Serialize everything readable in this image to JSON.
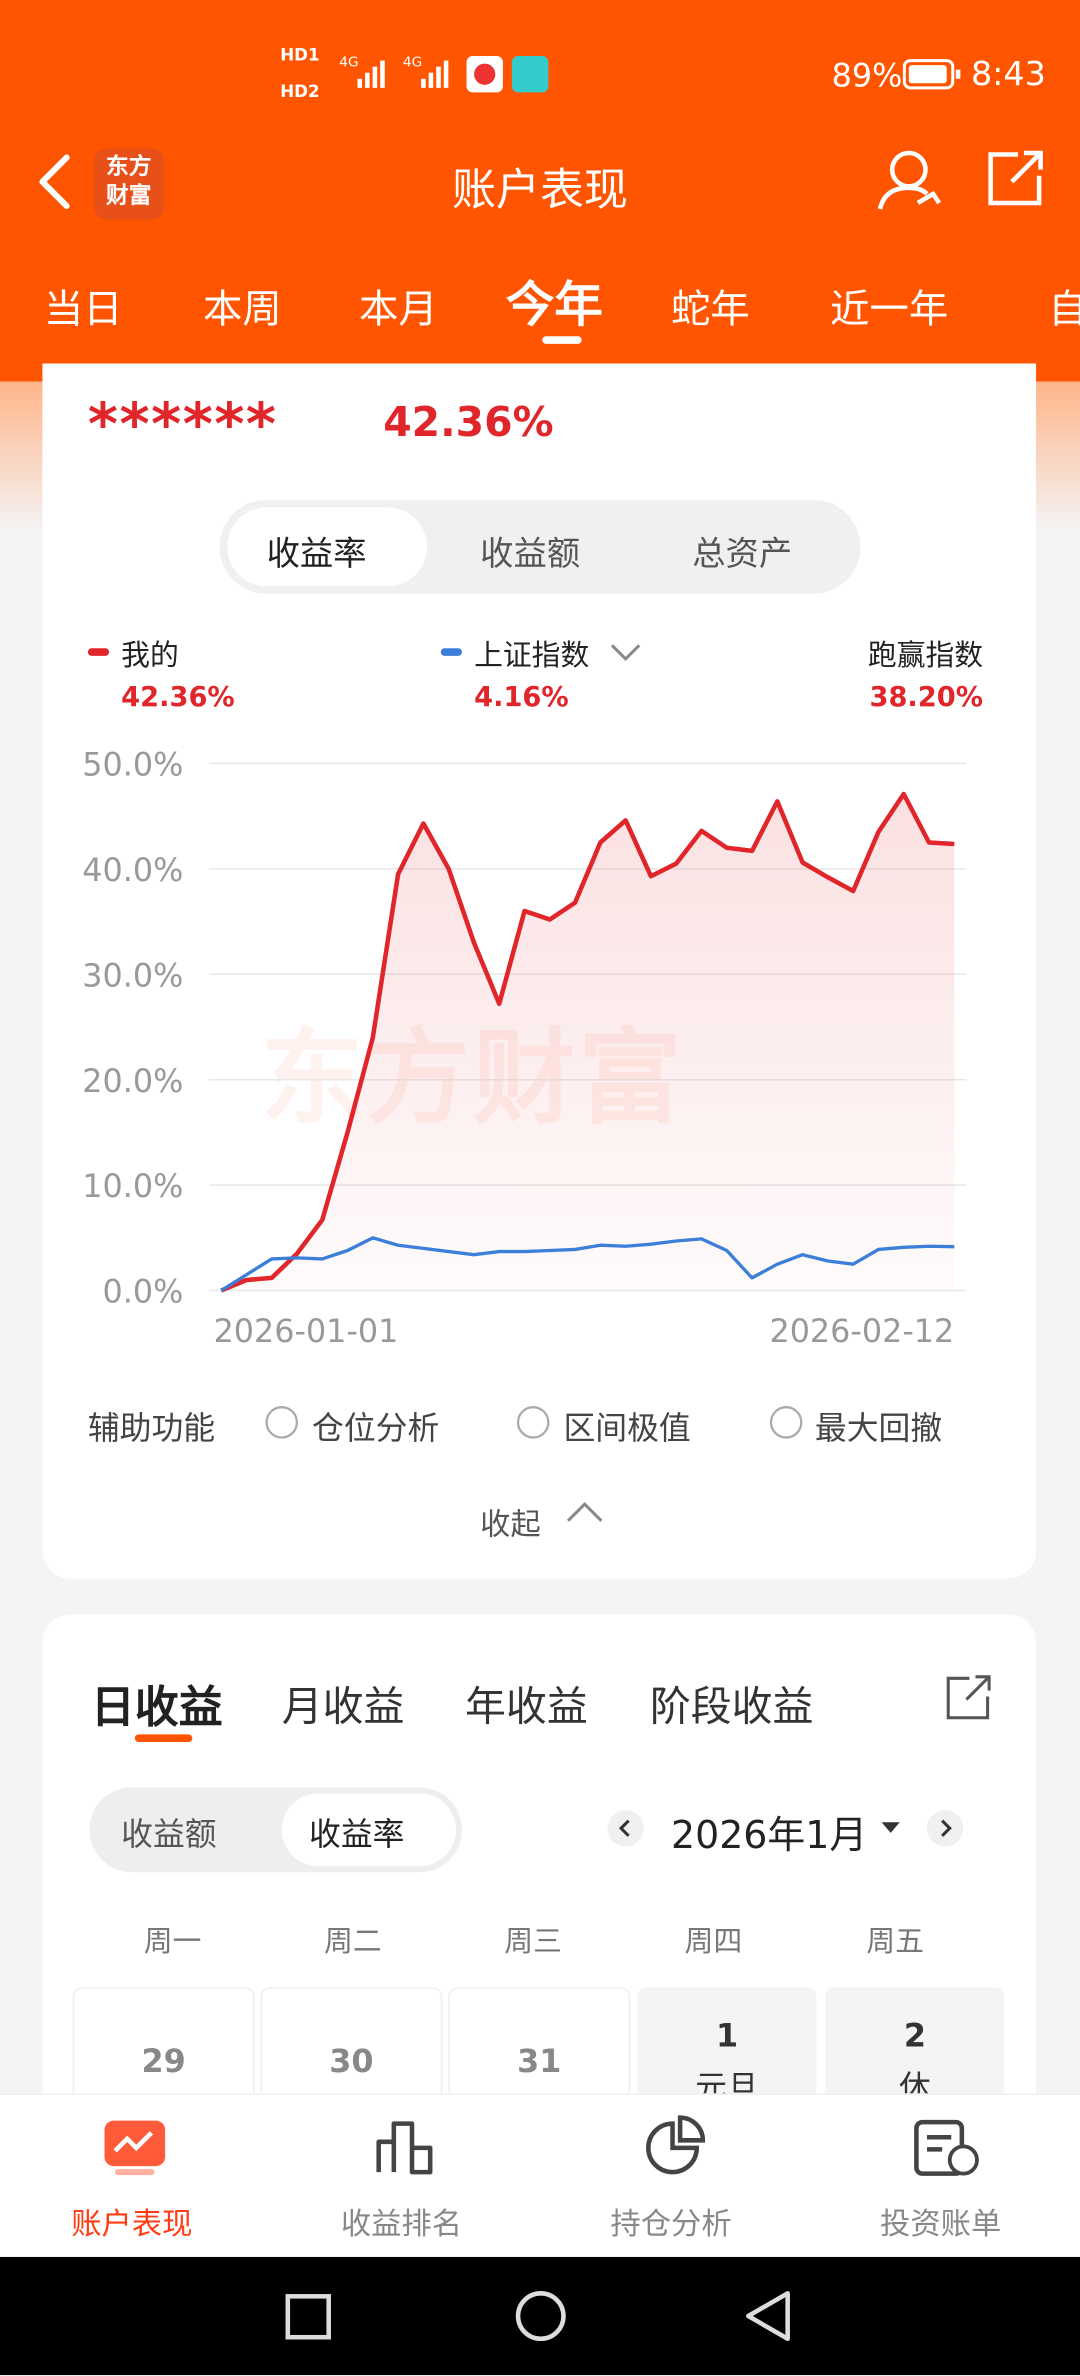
{
  "status_bar": {
    "sim1": "HD1",
    "sim2": "HD2",
    "net1": "4G",
    "net2": "4G",
    "battery": "89%",
    "time": "8:43"
  },
  "header": {
    "logo_top": "东方",
    "logo_bottom": "财富",
    "title": "账户表现"
  },
  "period_tabs": [
    "当日",
    "本周",
    "本月",
    "今年",
    "蛇年",
    "近一年",
    "自"
  ],
  "summary": {
    "masked": "******",
    "return": "42.36%"
  },
  "metric_tabs": [
    "收益率",
    "收益额",
    "总资产"
  ],
  "comparison": {
    "mine_value": "42.36%",
    "index_value": "4.16%",
    "outperform_label": "跑赢指数",
    "outperform_value": "38.20%"
  },
  "watermark": "东方财富",
  "chart_data": {
    "type": "line",
    "categories": [
      "2026-01-01",
      null,
      null,
      null,
      null,
      null,
      null,
      null,
      null,
      null,
      null,
      null,
      null,
      null,
      null,
      null,
      null,
      null,
      null,
      null,
      null,
      null,
      null,
      null,
      null,
      null,
      null,
      null,
      null,
      "2026-02-12"
    ],
    "series": [
      {
        "name": "我的",
        "color": "#e0262b",
        "values": [
          0,
          1.0,
          1.2,
          3.5,
          6.7,
          15,
          24,
          39.5,
          44.3,
          40,
          33,
          27.2,
          36,
          35.2,
          36.8,
          42.5,
          44.6,
          39.3,
          40.5,
          43.6,
          42,
          41.7,
          46.4,
          40.6,
          39.2,
          37.9,
          43.5,
          47.1,
          42.5,
          42.36
        ]
      },
      {
        "name": "上证指数",
        "color": "#3b7fd8",
        "values": [
          0,
          1.5,
          3.0,
          3.1,
          3.0,
          3.8,
          5.0,
          4.3,
          4.0,
          3.7,
          3.4,
          3.7,
          3.7,
          3.8,
          3.9,
          4.3,
          4.2,
          4.4,
          4.7,
          4.9,
          3.8,
          1.2,
          2.5,
          3.4,
          2.8,
          2.5,
          3.9,
          4.1,
          4.2,
          4.16
        ]
      }
    ],
    "ylim": [
      0,
      50
    ],
    "yticks": [
      {
        "value": 0,
        "label": "0.0%"
      },
      {
        "value": 10,
        "label": "10.0%"
      },
      {
        "value": 20,
        "label": "20.0%"
      },
      {
        "value": 30,
        "label": "30.0%"
      },
      {
        "value": 40,
        "label": "40.0%"
      },
      {
        "value": 50,
        "label": "50.0%"
      }
    ],
    "grid": true
  },
  "aux": {
    "label": "辅助功能",
    "options": [
      "仓位分析",
      "区间极值",
      "最大回撤"
    ]
  },
  "collapse": "收起",
  "income_tabs": [
    "日收益",
    "月收益",
    "年收益",
    "阶段收益"
  ],
  "toggle": [
    "收益额",
    "收益率"
  ],
  "month": "2026年1月",
  "weekdays": [
    "周一",
    "周二",
    "周三",
    "周四",
    "周五"
  ],
  "calendar": [
    {
      "day": "29"
    },
    {
      "day": "30"
    },
    {
      "day": "31"
    },
    {
      "day": "1",
      "note": "元旦"
    },
    {
      "day": "2",
      "note": "休"
    }
  ],
  "bottom_nav": [
    "账户表现",
    "收益排名",
    "持仓分析",
    "投资账单"
  ]
}
